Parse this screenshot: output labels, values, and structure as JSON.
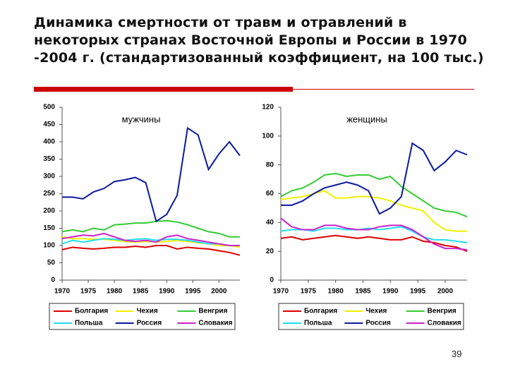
{
  "slide": {
    "title": "Динамика смертности от травм и отравлений в некоторых странах Восточной Европы и России в 1970 -2004 г. (стандартизованный коэффициент, на 100 тыс.)",
    "page_number": "39"
  },
  "chart_data": [
    {
      "type": "line",
      "title": "мужчины",
      "x": [
        1970,
        1972,
        1974,
        1976,
        1978,
        1980,
        1982,
        1984,
        1986,
        1988,
        1990,
        1992,
        1994,
        1996,
        1998,
        2000,
        2002,
        2004
      ],
      "xlim": [
        1970,
        2004
      ],
      "xticks": [
        1970,
        1975,
        1980,
        1985,
        1990,
        1995,
        2000
      ],
      "ylim": [
        0,
        500
      ],
      "yticks": [
        0,
        50,
        100,
        150,
        200,
        250,
        300,
        350,
        400,
        450,
        500
      ],
      "series": [
        {
          "name": "Болгария",
          "color": "#dd0000",
          "values": [
            88,
            95,
            92,
            90,
            92,
            95,
            95,
            98,
            95,
            100,
            100,
            90,
            95,
            92,
            90,
            85,
            80,
            72
          ]
        },
        {
          "name": "Чехия",
          "color": "#f0f000",
          "values": [
            125,
            120,
            120,
            118,
            118,
            115,
            112,
            110,
            112,
            110,
            112,
            115,
            112,
            108,
            105,
            100,
            100,
            95
          ]
        },
        {
          "name": "Венгрия",
          "color": "#33cc33",
          "values": [
            140,
            145,
            140,
            150,
            145,
            160,
            162,
            165,
            165,
            170,
            172,
            168,
            160,
            150,
            140,
            135,
            125,
            125
          ]
        },
        {
          "name": "Польша",
          "color": "#22ddee",
          "values": [
            105,
            115,
            110,
            115,
            120,
            118,
            115,
            118,
            120,
            115,
            118,
            118,
            115,
            110,
            105,
            105,
            100,
            100
          ]
        },
        {
          "name": "Россия",
          "color": "#0a1aa0",
          "values": [
            240,
            240,
            235,
            255,
            265,
            285,
            290,
            297,
            282,
            170,
            190,
            245,
            440,
            420,
            320,
            365,
            400,
            360
          ]
        },
        {
          "name": "Словакия",
          "color": "#cc22cc",
          "values": [
            120,
            125,
            130,
            128,
            135,
            125,
            115,
            112,
            115,
            110,
            125,
            130,
            120,
            115,
            110,
            105,
            100,
            100
          ]
        }
      ]
    },
    {
      "type": "line",
      "title": "женщины",
      "x": [
        1970,
        1972,
        1974,
        1976,
        1978,
        1980,
        1982,
        1984,
        1986,
        1988,
        1990,
        1992,
        1994,
        1996,
        1998,
        2000,
        2002,
        2004
      ],
      "xlim": [
        1970,
        2004
      ],
      "xticks": [
        1970,
        1975,
        1980,
        1985,
        1990,
        1995,
        2000
      ],
      "ylim": [
        0,
        120
      ],
      "yticks": [
        0,
        20,
        40,
        60,
        80,
        100,
        120
      ],
      "series": [
        {
          "name": "Болгария",
          "color": "#dd0000",
          "values": [
            29,
            30,
            28,
            29,
            30,
            31,
            30,
            29,
            30,
            29,
            28,
            28,
            30,
            27,
            26,
            24,
            23,
            20
          ]
        },
        {
          "name": "Чехия",
          "color": "#f0f000",
          "values": [
            56,
            57,
            58,
            60,
            62,
            57,
            57,
            58,
            58,
            57,
            55,
            52,
            50,
            48,
            40,
            35,
            34,
            34
          ]
        },
        {
          "name": "Венгрия",
          "color": "#33cc33",
          "values": [
            58,
            62,
            64,
            68,
            73,
            74,
            72,
            73,
            73,
            70,
            72,
            65,
            60,
            55,
            50,
            48,
            47,
            44
          ]
        },
        {
          "name": "Польша",
          "color": "#22ddee",
          "values": [
            34,
            35,
            35,
            34,
            36,
            36,
            35,
            35,
            36,
            35,
            36,
            37,
            34,
            30,
            28,
            28,
            27,
            26
          ]
        },
        {
          "name": "Россия",
          "color": "#0a1aa0",
          "values": [
            52,
            52,
            55,
            60,
            64,
            66,
            68,
            66,
            62,
            46,
            50,
            58,
            95,
            90,
            76,
            82,
            90,
            87
          ]
        },
        {
          "name": "Словакия",
          "color": "#cc22cc",
          "values": [
            43,
            37,
            35,
            35,
            38,
            38,
            36,
            35,
            35,
            37,
            38,
            38,
            35,
            30,
            25,
            22,
            22,
            21
          ]
        }
      ]
    }
  ]
}
